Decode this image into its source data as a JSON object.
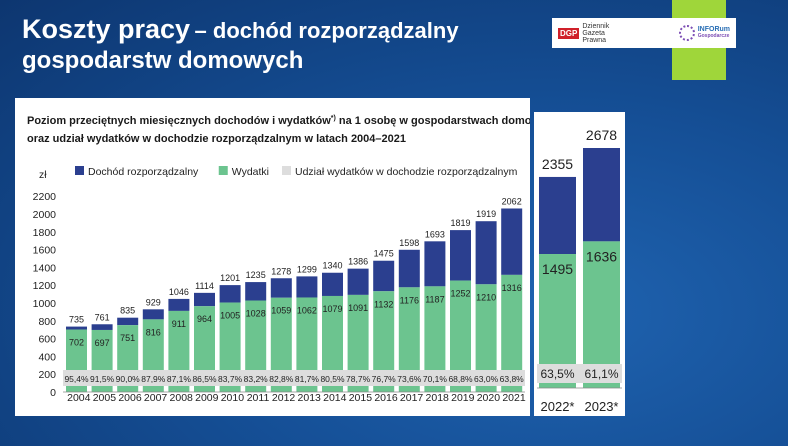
{
  "slide": {
    "title_main": "Koszty pracy",
    "title_dash": "– dochód rozporządzalny",
    "title_line2": "gospodarstw domowych"
  },
  "logos": {
    "dgp_mark": "DGP",
    "dgp_text": "Dziennik Gazeta Prawna",
    "inforum_text": "INFORum",
    "inforum_sub": "Gospodarcze"
  },
  "chart_data": [
    {
      "type": "bar",
      "title_line1": "Poziom przeciętnych miesięcznych dochodów i wydatków",
      "title_sup": "*)",
      "title_line1_end": " na 1 osobę w gospodarstwach domowych",
      "title_line2": "oraz udział wydatków w dochodzie rozporządzalnym w latach 2004–2021",
      "ylabel": "zł",
      "ylim": [
        0,
        2200
      ],
      "yticks": [
        0,
        200,
        400,
        600,
        800,
        1000,
        1200,
        1400,
        1600,
        1800,
        2000,
        2200
      ],
      "grid": false,
      "legend_position": "top-left",
      "categories": [
        "2004",
        "2005",
        "2006",
        "2007",
        "2008",
        "2009",
        "2010",
        "2011",
        "2012",
        "2013",
        "2014",
        "2015",
        "2016",
        "2017",
        "2018",
        "2019",
        "2020",
        "2021"
      ],
      "series": [
        {
          "name": "Dochód rozporządzalny",
          "color": "#2b3f8f",
          "values": [
            735,
            761,
            835,
            929,
            1046,
            1114,
            1201,
            1235,
            1278,
            1299,
            1340,
            1386,
            1475,
            1598,
            1693,
            1819,
            1919,
            2062
          ]
        },
        {
          "name": "Wydatki",
          "color": "#6cc48f",
          "values": [
            702,
            697,
            751,
            816,
            911,
            964,
            1005,
            1028,
            1059,
            1062,
            1079,
            1091,
            1132,
            1176,
            1187,
            1252,
            1210,
            1316
          ]
        },
        {
          "name": "Udział wydatków w dochodzie rozporządzalnym",
          "color": "#dddddd",
          "values": [
            "95,4%",
            "91,5%",
            "90,0%",
            "87,9%",
            "87,1%",
            "86,5%",
            "83,7%",
            "83,2%",
            "82,8%",
            "81,7%",
            "80,5%",
            "78,7%",
            "76,7%",
            "73,6%",
            "70,1%",
            "68,8%",
            "63,0%",
            "63,8%"
          ]
        }
      ]
    },
    {
      "type": "bar",
      "categories": [
        "2022*",
        "2023*"
      ],
      "series": [
        {
          "name": "Dochód rozporządzalny",
          "color": "#2b3f8f",
          "values": [
            2355,
            2678
          ]
        },
        {
          "name": "Wydatki",
          "color": "#6cc48f",
          "values": [
            1495,
            1636
          ]
        },
        {
          "name": "Udział wydatków w dochodzie rozporządzalnym",
          "color": "#dddddd",
          "values": [
            "63,5%",
            "61,1%"
          ]
        }
      ]
    }
  ]
}
